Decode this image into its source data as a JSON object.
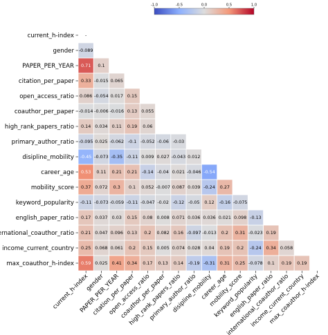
{
  "chart_data": {
    "type": "heatmap",
    "title": "",
    "xlabel": "",
    "ylabel": "",
    "mask": "upper-triangle",
    "labels": [
      "current_h-index",
      "gender",
      "PAPER_PER_YEAR",
      "citation_per_paper",
      "open_access_ratio",
      "coauthor_per_paper",
      "high_rank_papers_ratio",
      "primary_author_ratio",
      "disipline_mobility",
      "career_age",
      "mobility_score",
      "keyword_popularity",
      "english_paper_ratio",
      "international_coauthor_ratio",
      "income_current_country",
      "max_coauthor_h-index"
    ],
    "diagonal_labels": [
      "-"
    ],
    "values": [
      [],
      [
        "-0.089"
      ],
      [
        "0.71",
        "0.1"
      ],
      [
        "0.33",
        "-0.015",
        "0.065"
      ],
      [
        "0.086",
        "-0.054",
        "0.017",
        "0.15"
      ],
      [
        "-0.014",
        "-0.006",
        "-0.016",
        "0.13",
        "0.055"
      ],
      [
        "0.14",
        "0.034",
        "0.11",
        "0.19",
        "0.06"
      ],
      [
        "-0.095",
        "0.025",
        "-0.062",
        "-0.1",
        "-0.052",
        "-0.06",
        "-0.03"
      ],
      [
        "-0.45",
        "-0.073",
        "-0.35",
        "-0.11",
        "0.009",
        "0.027",
        "-0.043",
        "0.012"
      ],
      [
        "0.53",
        "0.11",
        "0.21",
        "0.21",
        "-0.14",
        "-0.04",
        "0.021",
        "-0.046",
        "-0.54"
      ],
      [
        "0.37",
        "0.072",
        "0.3",
        "0.1",
        "0.052",
        "-0.007",
        "0.087",
        "0.039",
        "-0.24",
        "0.27"
      ],
      [
        "-0.11",
        "-0.073",
        "-0.059",
        "-0.11",
        "-0.047",
        "-0.02",
        "-0.12",
        "-0.05",
        "0.12",
        "-0.16",
        "-0.075"
      ],
      [
        "0.17",
        "0.037",
        "0.03",
        "0.15",
        "0.08",
        "0.008",
        "0.071",
        "0.036",
        "0.036",
        "0.021",
        "0.098",
        "-0.13"
      ],
      [
        "0.21",
        "0.047",
        "0.096",
        "0.13",
        "0.2",
        "0.082",
        "0.16",
        "-0.097",
        "-0.013",
        "0.2",
        "0.31",
        "-0.023",
        "0.19"
      ],
      [
        "0.25",
        "0.068",
        "0.061",
        "0.2",
        "0.15",
        "0.005",
        "0.074",
        "0.028",
        "0.04",
        "0.19",
        "0.2",
        "-0.24",
        "0.34",
        "0.058"
      ],
      [
        "0.59",
        "0.025",
        "0.41",
        "0.34",
        "0.17",
        "0.13",
        "0.14",
        "-0.19",
        "-0.31",
        "0.31",
        "0.25",
        "-0.078",
        "0.1",
        "0.19",
        "0.19"
      ]
    ],
    "colorbar": {
      "colormap": "coolwarm",
      "range": [
        -1.0,
        1.0
      ],
      "ticks": [
        "-1.0",
        "-0.5",
        "0.0",
        "0.5",
        "1.0"
      ],
      "placement": "top-right",
      "orientation": "horizontal"
    },
    "grid": "white cell borders"
  }
}
